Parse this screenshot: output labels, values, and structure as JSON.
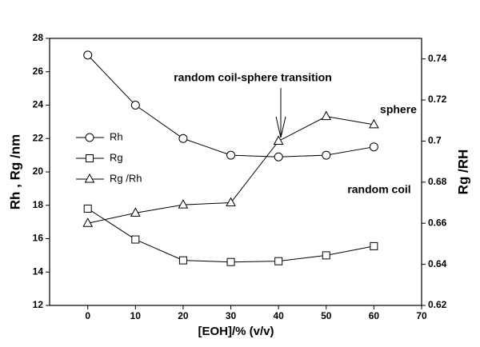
{
  "chart_data": {
    "type": "line",
    "xlabel": "[EOH]/% (v/v)",
    "ylabel": "Rh , Rg /nm",
    "y2label": "Rg /RH",
    "x": [
      0,
      10,
      20,
      30,
      40,
      50,
      60
    ],
    "series": [
      {
        "name": "Rh",
        "color": "#000000",
        "marker": "circle",
        "values": [
          27,
          24,
          22,
          21,
          20.9,
          21,
          21.5
        ]
      },
      {
        "name": "Rg",
        "color": "#000000",
        "marker": "square",
        "values": [
          17.8,
          15.95,
          14.7,
          14.6,
          14.65,
          15.0,
          15.55
        ]
      },
      {
        "name": "Rg /Rh",
        "color": "#000000",
        "marker": "triangle",
        "axis": "y2",
        "values": [
          0.66,
          0.665,
          0.669,
          0.67,
          0.7,
          0.712,
          0.708
        ]
      }
    ],
    "xlim": [
      -8,
      70
    ],
    "xticks": [
      0,
      10,
      20,
      30,
      40,
      50,
      60,
      70
    ],
    "ylim": [
      12,
      28
    ],
    "yticks": [
      12,
      14,
      16,
      18,
      20,
      22,
      24,
      26,
      28
    ],
    "y2lim": [
      0.62,
      0.75
    ],
    "y2ticks": [
      0.62,
      0.64,
      0.66,
      0.68,
      0.7,
      0.72,
      0.74
    ],
    "annotations": [
      "random coil-sphere transition",
      "sphere",
      "random coil"
    ]
  }
}
